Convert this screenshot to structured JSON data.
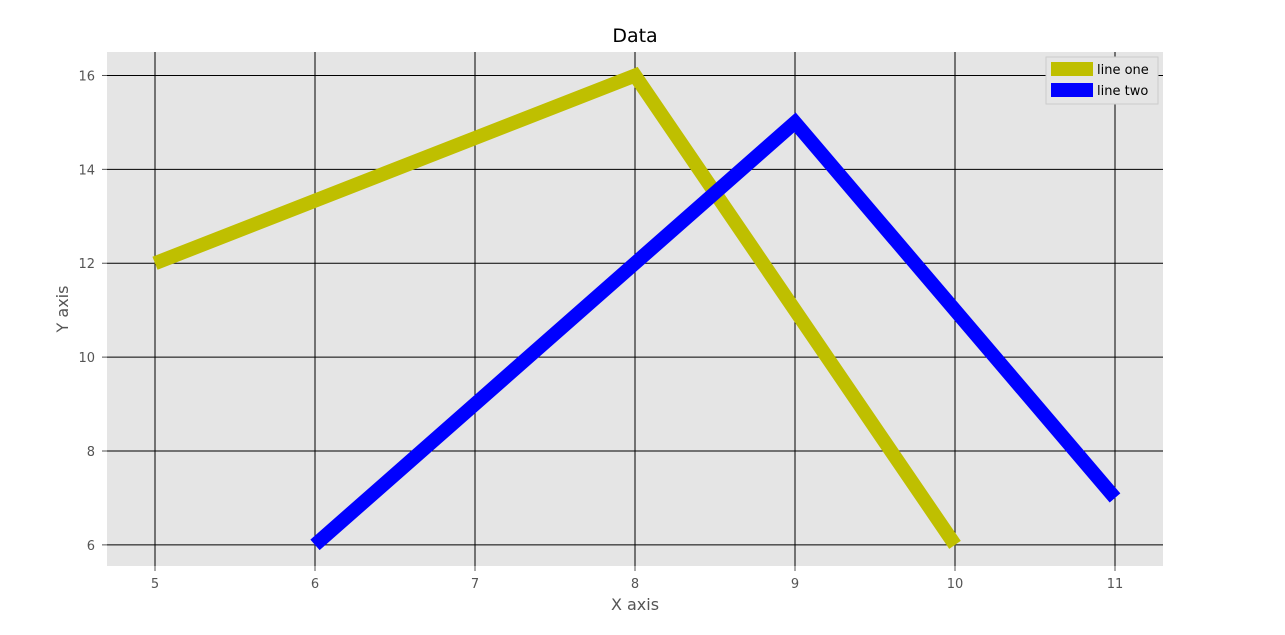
{
  "chart_data": {
    "type": "line",
    "title": "Data",
    "xlabel": "X axis",
    "ylabel": "Y axis",
    "xlim": [
      4.7,
      11.3
    ],
    "ylim": [
      5.55,
      16.5
    ],
    "xticks": [
      5,
      6,
      7,
      8,
      9,
      10,
      11
    ],
    "yticks": [
      6,
      8,
      10,
      12,
      14,
      16
    ],
    "grid": true,
    "legend_position": "top-right",
    "background_color": "#e5e5e5",
    "grid_color": "#000000",
    "series": [
      {
        "name": "line one",
        "color": "#bfbf00",
        "x": [
          5,
          8,
          10
        ],
        "y": [
          12,
          16,
          6
        ]
      },
      {
        "name": "line two",
        "color": "#0000ff",
        "x": [
          6,
          9,
          11
        ],
        "y": [
          6,
          15,
          7
        ]
      }
    ]
  }
}
